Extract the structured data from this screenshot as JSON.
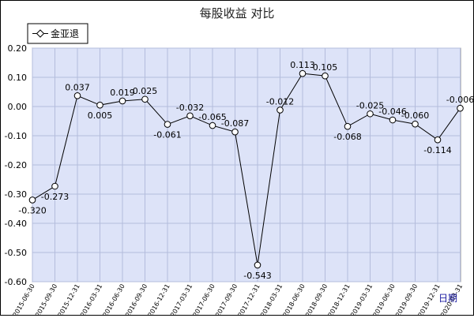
{
  "chart_data": {
    "type": "line",
    "title": "每股收益 对比",
    "xlabel": "日期",
    "ylabel": "",
    "ylim": [
      -0.6,
      0.2
    ],
    "yticks": [
      "0.20",
      "0.10",
      "0.00",
      "-0.10",
      "-0.20",
      "-0.30",
      "-0.40",
      "-0.50",
      "-0.60"
    ],
    "yticks_values": [
      0.2,
      0.1,
      0.0,
      -0.1,
      -0.2,
      -0.3,
      -0.4,
      -0.5,
      -0.6
    ],
    "grid": true,
    "legend_position": "top-left",
    "categories": [
      "2015-06-30",
      "2015-09-30",
      "2015-12-31",
      "2016-03-31",
      "2016-06-30",
      "2016-09-30",
      "2016-12-31",
      "2017-03-31",
      "2017-06-30",
      "2017-09-30",
      "2017-12-31",
      "2018-03-31",
      "2018-06-30",
      "2018-09-30",
      "2018-12-31",
      "2019-03-31",
      "2019-06-30",
      "2019-09-30",
      "2019-12-31",
      "2020-03-31"
    ],
    "series": [
      {
        "name": "金亚退",
        "values": [
          -0.32,
          -0.273,
          0.037,
          0.005,
          0.019,
          0.025,
          -0.061,
          -0.032,
          -0.065,
          -0.087,
          -0.543,
          -0.012,
          0.113,
          0.105,
          -0.068,
          -0.025,
          -0.046,
          -0.06,
          -0.114,
          -0.006
        ],
        "labels": [
          "-0.320",
          "-0.273",
          "0.037",
          "0.005",
          "0.019",
          "0.025",
          "-0.061",
          "-0.032",
          "-0.065",
          "-0.087",
          "-0.543",
          "-0.012",
          "0.113",
          "0.105",
          "-0.068",
          "-0.025",
          "-0.046",
          "-0.060",
          "-0.114",
          "-0.006"
        ]
      }
    ]
  },
  "colors": {
    "plot_bg": "#dde3f8",
    "grid": "#b4bcdc",
    "line": "#000000",
    "axis_label": "#1a1aa0"
  }
}
